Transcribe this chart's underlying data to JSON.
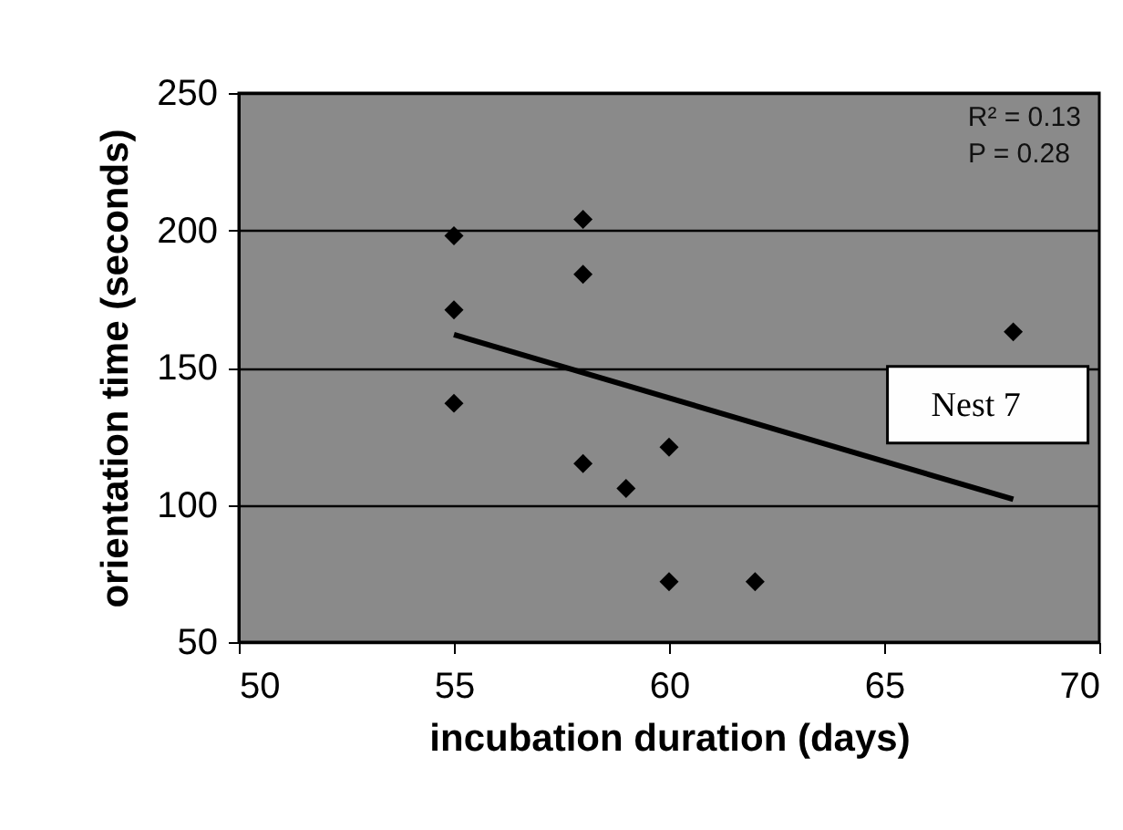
{
  "chart_data": {
    "type": "scatter",
    "xlabel": "incubation duration (days)",
    "ylabel": "orientation time (seconds)",
    "xlim": [
      50,
      70
    ],
    "xticks": [
      50,
      55,
      60,
      65,
      70
    ],
    "ylim": [
      50,
      250
    ],
    "yticks": [
      50,
      100,
      150,
      200,
      250
    ],
    "grid": "y",
    "series": [
      {
        "color": "#000000",
        "marker": "diamond",
        "x": [
          55,
          55,
          55,
          58,
          58,
          58,
          59,
          60,
          60,
          62,
          68
        ],
        "values": [
          198,
          171,
          137,
          204,
          184,
          115,
          106,
          121,
          72,
          72,
          163
        ]
      },
      {
        "type": "line",
        "color": "#000000",
        "x": [
          55,
          68
        ],
        "values": [
          162,
          102
        ]
      }
    ],
    "annotations": [
      "R² = 0.13",
      "P = 0.28",
      {
        "text": "Nest 7",
        "x": 68,
        "y": 163
      }
    ]
  }
}
